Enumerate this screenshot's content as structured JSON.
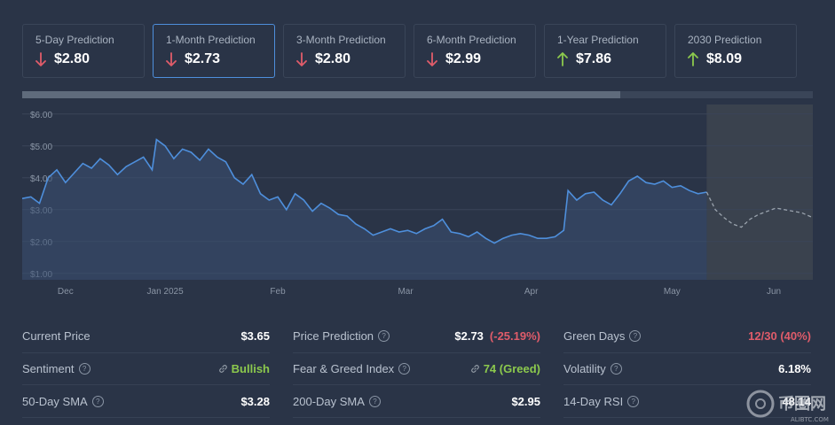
{
  "predictions": [
    {
      "label": "5-Day Prediction",
      "value": "$2.80",
      "direction": "down"
    },
    {
      "label": "1-Month Prediction",
      "value": "$2.73",
      "direction": "down",
      "active": true
    },
    {
      "label": "3-Month Prediction",
      "value": "$2.80",
      "direction": "down"
    },
    {
      "label": "6-Month Prediction",
      "value": "$2.99",
      "direction": "down"
    },
    {
      "label": "1-Year Prediction",
      "value": "$7.86",
      "direction": "up"
    },
    {
      "label": "2030 Prediction",
      "value": "$8.09",
      "direction": "up"
    }
  ],
  "colors": {
    "down": "#e05c6a",
    "up": "#8cc94d",
    "line": "#4e8fdc",
    "forecast": "#9aa3ad"
  },
  "chart_data": {
    "type": "line",
    "ylim": [
      0.8,
      6.3
    ],
    "y_ticks": [
      "$6.00",
      "$5.00",
      "$4.00",
      "$3.00",
      "$2.00",
      "$1.00"
    ],
    "y_tick_values": [
      6,
      5,
      4,
      3,
      2,
      1
    ],
    "x_ticks": [
      "Dec",
      "Jan 2025",
      "Feb",
      "Mar",
      "Apr",
      "May",
      "Jun"
    ],
    "x_tick_positions": [
      20,
      66,
      118,
      177,
      235,
      300,
      347
    ],
    "xlim": [
      0,
      365
    ],
    "series": [
      {
        "values": [
          [
            0,
            3.35
          ],
          [
            4,
            3.4
          ],
          [
            8,
            3.2
          ],
          [
            12,
            4.0
          ],
          [
            16,
            4.25
          ],
          [
            20,
            3.85
          ],
          [
            24,
            4.15
          ],
          [
            28,
            4.45
          ],
          [
            32,
            4.3
          ],
          [
            36,
            4.6
          ],
          [
            40,
            4.4
          ],
          [
            44,
            4.1
          ],
          [
            48,
            4.35
          ],
          [
            52,
            4.5
          ],
          [
            56,
            4.65
          ],
          [
            60,
            4.25
          ],
          [
            62,
            5.2
          ],
          [
            66,
            5.0
          ],
          [
            70,
            4.6
          ],
          [
            74,
            4.9
          ],
          [
            78,
            4.8
          ],
          [
            82,
            4.55
          ],
          [
            86,
            4.9
          ],
          [
            90,
            4.65
          ],
          [
            94,
            4.5
          ],
          [
            98,
            4.0
          ],
          [
            102,
            3.8
          ],
          [
            106,
            4.1
          ],
          [
            110,
            3.5
          ],
          [
            114,
            3.3
          ],
          [
            118,
            3.4
          ],
          [
            122,
            3.0
          ],
          [
            126,
            3.5
          ],
          [
            130,
            3.3
          ],
          [
            134,
            2.95
          ],
          [
            138,
            3.2
          ],
          [
            142,
            3.05
          ],
          [
            146,
            2.85
          ],
          [
            150,
            2.8
          ],
          [
            154,
            2.55
          ],
          [
            158,
            2.4
          ],
          [
            162,
            2.2
          ],
          [
            166,
            2.3
          ],
          [
            170,
            2.4
          ],
          [
            174,
            2.3
          ],
          [
            178,
            2.35
          ],
          [
            182,
            2.25
          ],
          [
            186,
            2.4
          ],
          [
            190,
            2.5
          ],
          [
            194,
            2.7
          ],
          [
            198,
            2.3
          ],
          [
            202,
            2.25
          ],
          [
            206,
            2.15
          ],
          [
            210,
            2.3
          ],
          [
            214,
            2.1
          ],
          [
            218,
            1.95
          ],
          [
            222,
            2.1
          ],
          [
            226,
            2.2
          ],
          [
            230,
            2.25
          ],
          [
            234,
            2.2
          ],
          [
            238,
            2.1
          ],
          [
            242,
            2.1
          ],
          [
            246,
            2.15
          ],
          [
            250,
            2.35
          ],
          [
            252,
            3.6
          ],
          [
            256,
            3.3
          ],
          [
            260,
            3.5
          ],
          [
            264,
            3.55
          ],
          [
            268,
            3.3
          ],
          [
            272,
            3.15
          ],
          [
            276,
            3.5
          ],
          [
            280,
            3.9
          ],
          [
            284,
            4.05
          ],
          [
            288,
            3.85
          ],
          [
            292,
            3.8
          ],
          [
            296,
            3.9
          ],
          [
            300,
            3.7
          ],
          [
            304,
            3.75
          ],
          [
            308,
            3.6
          ],
          [
            312,
            3.5
          ],
          [
            316,
            3.55
          ]
        ]
      },
      {
        "values": [
          [
            316,
            3.55
          ],
          [
            320,
            3.0
          ],
          [
            324,
            2.75
          ],
          [
            328,
            2.55
          ],
          [
            332,
            2.45
          ],
          [
            336,
            2.7
          ],
          [
            340,
            2.85
          ],
          [
            344,
            2.95
          ],
          [
            348,
            3.05
          ],
          [
            352,
            3.0
          ],
          [
            356,
            2.95
          ],
          [
            360,
            2.9
          ],
          [
            365,
            2.75
          ]
        ]
      }
    ]
  },
  "stats": [
    [
      {
        "label": "Current Price",
        "value": "$3.65"
      },
      {
        "label": "Price Prediction",
        "help": "?",
        "value": "$2.73",
        "extra": "(-25.19%)"
      },
      {
        "label": "Green Days",
        "help": "?",
        "value": "12/30 (40%)",
        "tone": "neg"
      }
    ],
    [
      {
        "label": "Sentiment",
        "help": "?",
        "value": "Bullish",
        "tone": "pos",
        "link": true
      },
      {
        "label": "Fear & Greed Index",
        "help": "?",
        "value": "74 (Greed)",
        "tone": "pos",
        "link": true
      },
      {
        "label": "Volatility",
        "help": "?",
        "value": "6.18%"
      }
    ],
    [
      {
        "label": "50-Day SMA",
        "help": "?",
        "value": "$3.28"
      },
      {
        "label": "200-Day SMA",
        "help": "?",
        "value": "$2.95"
      },
      {
        "label": "14-Day RSI",
        "help": "?",
        "value": "48.14"
      }
    ]
  ],
  "watermark": {
    "text": "币圈网",
    "sub": "ALIBTC.COM"
  }
}
